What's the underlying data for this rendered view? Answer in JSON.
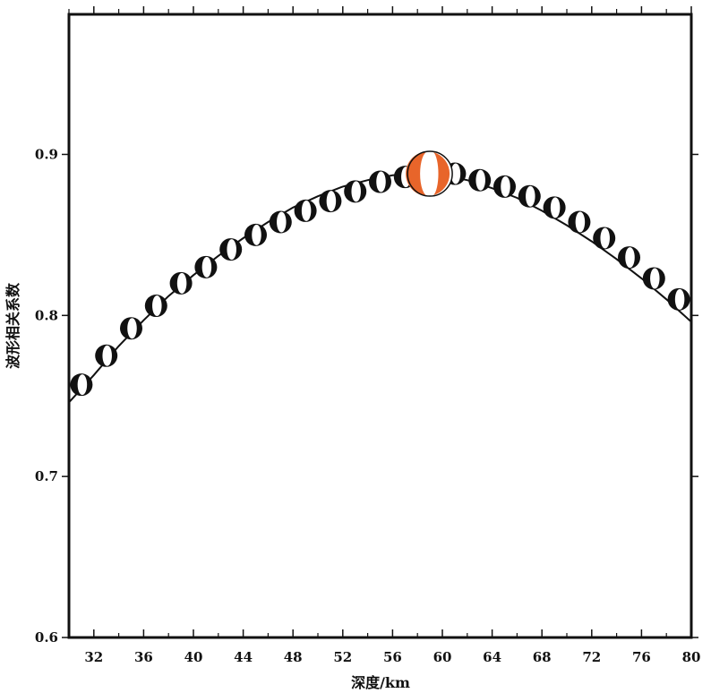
{
  "chart_data": {
    "type": "scatter",
    "title": "",
    "xlabel": "深度/km",
    "ylabel": "波形相关系数",
    "xlim": [
      30,
      80
    ],
    "ylim": [
      0.6,
      0.987
    ],
    "xticks": [
      32,
      36,
      40,
      44,
      48,
      52,
      56,
      60,
      64,
      68,
      72,
      76,
      80
    ],
    "yticks": [
      0.6,
      0.7,
      0.8,
      0.9
    ],
    "ytick_labels": [
      "0.6",
      "0.7",
      "0.8",
      "0.9"
    ],
    "grid": false,
    "curve": {
      "x": [
        30,
        32,
        34,
        36,
        38,
        40,
        42,
        44,
        46,
        48,
        50,
        52,
        54,
        56,
        58,
        59,
        60,
        62,
        64,
        66,
        68,
        70,
        72,
        74,
        76,
        78,
        80
      ],
      "y": [
        0.746,
        0.763,
        0.781,
        0.797,
        0.812,
        0.825,
        0.837,
        0.848,
        0.858,
        0.867,
        0.874,
        0.88,
        0.884,
        0.887,
        0.888,
        0.888,
        0.887,
        0.884,
        0.879,
        0.873,
        0.865,
        0.856,
        0.846,
        0.835,
        0.823,
        0.81,
        0.796
      ]
    },
    "mechanisms": {
      "x": [
        31,
        33,
        35,
        37,
        39,
        41,
        43,
        45,
        47,
        49,
        51,
        53,
        55,
        57,
        61,
        63,
        65,
        67,
        69,
        71,
        73,
        75,
        77,
        79
      ],
      "y": [
        0.757,
        0.775,
        0.792,
        0.806,
        0.82,
        0.83,
        0.841,
        0.85,
        0.858,
        0.865,
        0.871,
        0.877,
        0.883,
        0.886,
        0.888,
        0.884,
        0.88,
        0.874,
        0.867,
        0.858,
        0.848,
        0.836,
        0.823,
        0.81
      ]
    },
    "best": {
      "x": 59,
      "y": 0.888,
      "color": "#e8652a"
    },
    "mechanism_color": "#111111"
  }
}
